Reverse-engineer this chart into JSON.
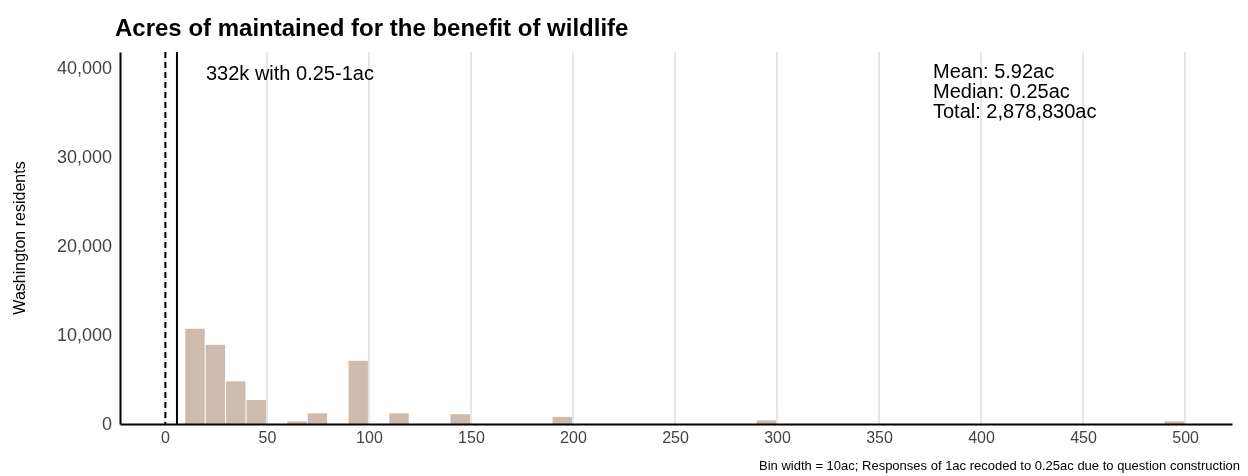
{
  "chart_data": {
    "type": "histogram",
    "title": "Acres of maintained for the benefit of wildlife",
    "ylabel": "Washington residents",
    "bins": [
      0,
      10,
      20,
      30,
      40,
      50,
      60,
      70,
      80,
      90,
      100,
      110,
      120,
      130,
      140,
      150,
      160,
      170,
      180,
      190,
      200,
      210,
      220,
      230,
      240,
      250,
      260,
      270,
      280,
      290,
      300,
      310,
      320,
      330,
      340,
      350,
      360,
      370,
      380,
      390,
      400,
      410,
      420,
      430,
      440,
      450,
      460,
      470,
      480,
      490,
      500
    ],
    "values": [
      null,
      10700,
      8900,
      4800,
      2700,
      0,
      300,
      1200,
      0,
      7100,
      0,
      1200,
      0,
      0,
      1100,
      0,
      0,
      0,
      0,
      800,
      0,
      0,
      0,
      0,
      0,
      0,
      0,
      0,
      0,
      400,
      0,
      0,
      0,
      0,
      0,
      0,
      0,
      0,
      0,
      0,
      0,
      0,
      0,
      0,
      0,
      0,
      0,
      0,
      0,
      300
    ],
    "color": "#cdbbae",
    "xlim": [
      -22,
      523
    ],
    "ylim": [
      0,
      41800
    ],
    "xticks": [
      0,
      50,
      100,
      150,
      200,
      250,
      300,
      350,
      400,
      450,
      500
    ],
    "yticks": [
      {
        "value": 0,
        "label": "0"
      },
      {
        "value": 10000,
        "label": "10,000"
      },
      {
        "value": 20000,
        "label": "20,000"
      },
      {
        "value": 30000,
        "label": "30,000"
      },
      {
        "value": 40000,
        "label": "40,000"
      }
    ],
    "grid": "x",
    "ref_lines": [
      {
        "axis": "x",
        "value": 0.25,
        "line_style": "dashed",
        "color": "#000000"
      },
      {
        "axis": "x",
        "value": 5.92,
        "line_style": "solid",
        "color": "#000000"
      }
    ],
    "annotations": [
      "332k with 0.25-1ac",
      "Mean: 5.92ac",
      "Median: 0.25ac",
      "Total: 2,878,830ac",
      "Bin width = 10ac; Responses of 1ac recoded to 0.25ac due to question construction"
    ]
  }
}
